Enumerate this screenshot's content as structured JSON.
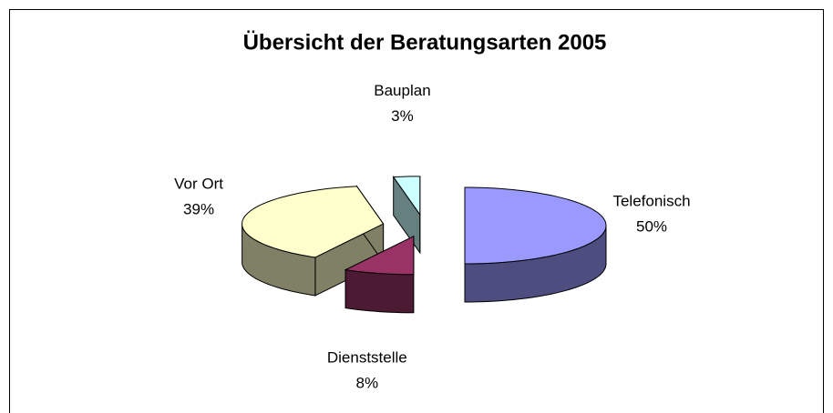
{
  "chart_data": {
    "type": "pie",
    "title": "Übersicht der Beratungsarten 2005",
    "categories": [
      "Telefonisch",
      "Dienststelle",
      "Vor Ort",
      "Bauplan"
    ],
    "values": [
      50,
      8,
      39,
      3
    ],
    "value_labels": [
      "50%",
      "8%",
      "39%",
      "3%"
    ],
    "colors": [
      "#9999ff",
      "#993366",
      "#ffffcc",
      "#ccffff"
    ],
    "side_colors": [
      "#4d4d80",
      "#4d1a33",
      "#808066",
      "#668080"
    ]
  }
}
